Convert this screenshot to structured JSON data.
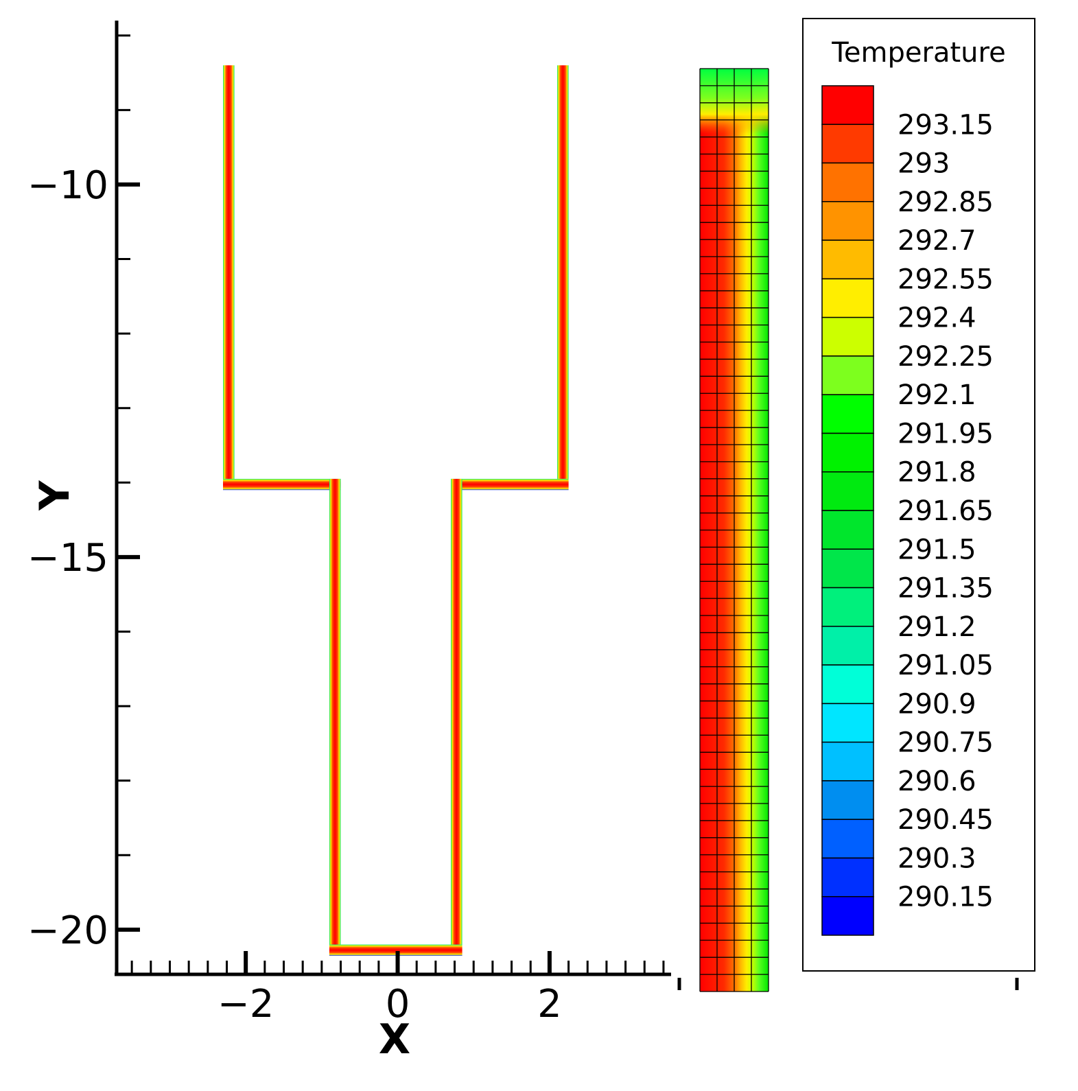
{
  "chart_data": [
    {
      "type": "heatmap",
      "xlabel": "X",
      "ylabel": "Y",
      "xlim": [
        -3.7,
        3.6
      ],
      "ylim": [
        -20.6,
        -7.8
      ],
      "xticks": [
        -2,
        0,
        2
      ],
      "xtick_labels": [
        "−2",
        "0",
        "2"
      ],
      "yticks": [
        -10,
        -15,
        -20
      ],
      "ytick_labels": [
        "−10",
        "−15",
        "−20"
      ],
      "grid": false,
      "regions": [
        {
          "name": "left-upper-wall",
          "x": [
            -2.3,
            -2.15
          ],
          "y": [
            -13.95,
            -8.4
          ]
        },
        {
          "name": "right-upper-wall",
          "x": [
            2.1,
            2.25
          ],
          "y": [
            -13.95,
            -8.4
          ]
        },
        {
          "name": "left-shoulder",
          "x": [
            -2.3,
            -0.75
          ],
          "y": [
            -14.1,
            -13.95
          ]
        },
        {
          "name": "right-shoulder",
          "x": [
            0.7,
            2.25
          ],
          "y": [
            -14.1,
            -13.95
          ]
        },
        {
          "name": "left-lower-wall",
          "x": [
            -0.9,
            -0.75
          ],
          "y": [
            -20.2,
            -13.95
          ]
        },
        {
          "name": "right-lower-wall",
          "x": [
            0.7,
            0.85
          ],
          "y": [
            -20.2,
            -13.95
          ]
        },
        {
          "name": "bottom",
          "x": [
            -0.9,
            0.85
          ],
          "y": [
            -20.35,
            -20.2
          ]
        }
      ]
    },
    {
      "type": "heatmap",
      "description_mesh_columns": 4,
      "description_mesh_rows": 54
    }
  ],
  "legend": {
    "title": "Temperature",
    "placement": "right",
    "levels": [
      {
        "label": "293.15",
        "color": "#ff0000"
      },
      {
        "label": "293",
        "color": "#ff3a00"
      },
      {
        "label": "292.85",
        "color": "#ff7200"
      },
      {
        "label": "292.7",
        "color": "#ff9300"
      },
      {
        "label": "292.55",
        "color": "#ffbb00"
      },
      {
        "label": "292.4",
        "color": "#ffee00"
      },
      {
        "label": "292.25",
        "color": "#ccff00"
      },
      {
        "label": "292.1",
        "color": "#7dff1e"
      },
      {
        "label": "291.95",
        "color": "#00ff00"
      },
      {
        "label": "291.8",
        "color": "#00f200"
      },
      {
        "label": "291.65",
        "color": "#00ea10"
      },
      {
        "label": "291.5",
        "color": "#00e62c"
      },
      {
        "label": "291.35",
        "color": "#00e64a"
      },
      {
        "label": "291.2",
        "color": "#00f07c"
      },
      {
        "label": "291.05",
        "color": "#00f0a8"
      },
      {
        "label": "290.9",
        "color": "#00ffd8"
      },
      {
        "label": "290.75",
        "color": "#00e6ff"
      },
      {
        "label": "290.6",
        "color": "#00c0ff"
      },
      {
        "label": "290.45",
        "color": "#008ef0"
      },
      {
        "label": "290.3",
        "color": "#0060ff"
      },
      {
        "label": "290.15",
        "color": "#0030ff"
      },
      {
        "label": "",
        "color": "#0000ff"
      }
    ]
  },
  "colors": {
    "hot": "#ff0000",
    "warm": "#ff7200",
    "yellow": "#ffee00",
    "green": "#00ff00",
    "cold": "#0000ff"
  }
}
